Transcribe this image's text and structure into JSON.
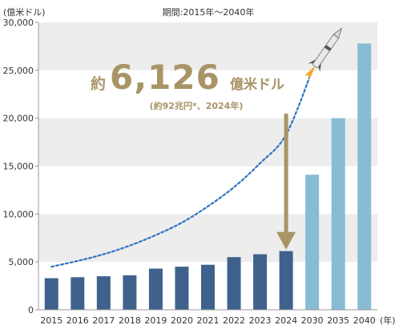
{
  "chart_data": {
    "type": "bar",
    "title": "期間:2015年〜2040年",
    "ylabel": "(億米ドル)",
    "xlabel": "",
    "x_unit_label": "(年)",
    "ylim": [
      0,
      30000
    ],
    "yticks": [
      0,
      5000,
      10000,
      15000,
      20000,
      25000,
      30000
    ],
    "ytick_labels": [
      "0",
      "5,000",
      "10,000",
      "15,000",
      "20,000",
      "25,000",
      "30,000"
    ],
    "categories": [
      "2015",
      "2016",
      "2017",
      "2018",
      "2019",
      "2020",
      "2021",
      "2022",
      "2023",
      "2024",
      "2030",
      "2035",
      "2040"
    ],
    "values": [
      3300,
      3400,
      3500,
      3600,
      4300,
      4500,
      4700,
      5500,
      5800,
      6126,
      14100,
      20000,
      27800
    ],
    "bar_kinds": [
      "actual",
      "actual",
      "actual",
      "actual",
      "actual",
      "actual",
      "actual",
      "actual",
      "actual",
      "actual",
      "forecast",
      "forecast",
      "forecast"
    ],
    "trend_curve": {
      "x": [
        "2015",
        "2016",
        "2017",
        "2018",
        "2019",
        "2020",
        "2021",
        "2022",
        "2023",
        "2024",
        "2030"
      ],
      "y": [
        4500,
        5100,
        5800,
        6700,
        7800,
        9100,
        10800,
        12800,
        15300,
        18300,
        25000
      ]
    },
    "banded_background": [
      [
        5000,
        10000
      ],
      [
        15000,
        20000
      ],
      [
        25000,
        30000
      ]
    ],
    "annotation": {
      "prefix": "約",
      "value_text": "6,126",
      "unit": "億米ドル",
      "sub": "(約92兆円*、2024年)",
      "arrow_to_category": "2024"
    },
    "colors": {
      "actual_bar": "#3F628D",
      "forecast_bar": "#88BBD4",
      "band": "#EDEDED",
      "trend": "#2E73C2",
      "annotation": "#A89466"
    }
  }
}
